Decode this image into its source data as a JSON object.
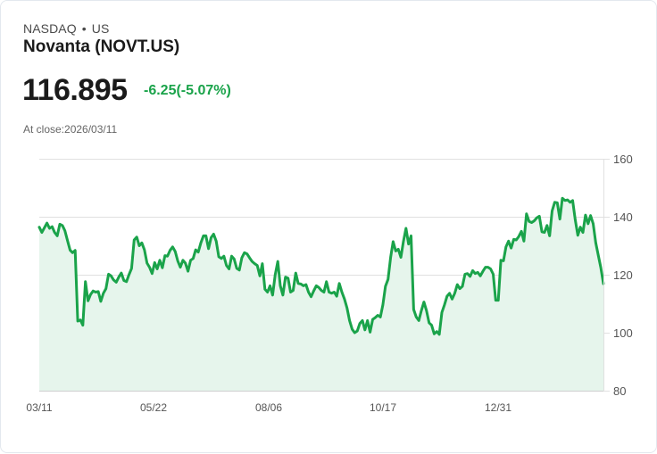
{
  "header": {
    "exchange": "NASDAQ",
    "separator": "•",
    "region": "US",
    "title": "Novanta (NOVT.US)",
    "price": "116.895",
    "change": "-6.25(-5.07%)",
    "close_label": "At close:2026/03/11"
  },
  "colors": {
    "line": "#1aa34a",
    "fill": "#e6f5ec",
    "change": "#1aa34a",
    "grid": "#e0e0e0"
  },
  "chart_data": {
    "type": "area",
    "title": "Novanta (NOVT.US)",
    "xlabel": "",
    "ylabel": "",
    "ylim": [
      80,
      160
    ],
    "yticks": [
      160,
      140,
      120,
      100,
      80
    ],
    "xtick_labels": [
      "03/11",
      "05/22",
      "08/06",
      "10/17",
      "12/31"
    ],
    "grid": true,
    "legend": null,
    "x_start_label": "03/11",
    "values": [
      136.4,
      134.6,
      136.2,
      137.8,
      136.0,
      136.6,
      134.6,
      133.4,
      137.4,
      137.0,
      135.2,
      131.8,
      128.5,
      127.6,
      128.4,
      104.0,
      104.4,
      102.6,
      117.6,
      111.0,
      113.2,
      114.4,
      114.0,
      114.2,
      110.8,
      113.6,
      115.2,
      120.2,
      119.6,
      118.2,
      117.4,
      119.2,
      120.6,
      118.0,
      117.6,
      120.0,
      122.2,
      132.0,
      133.0,
      130.0,
      131.0,
      128.6,
      124.0,
      122.6,
      120.4,
      124.2,
      122.0,
      125.0,
      122.4,
      126.6,
      126.4,
      128.4,
      129.6,
      128.0,
      124.8,
      122.6,
      125.0,
      124.0,
      121.2,
      125.0,
      125.6,
      128.6,
      127.8,
      131.0,
      133.4,
      133.4,
      129.0,
      132.8,
      134.0,
      131.6,
      126.2,
      125.6,
      126.4,
      123.2,
      122.0,
      126.4,
      125.4,
      122.2,
      121.6,
      125.8,
      127.6,
      127.2,
      125.8,
      124.6,
      123.8,
      123.2,
      119.6,
      123.8,
      115.0,
      114.0,
      116.2,
      113.0,
      120.0,
      124.6,
      116.2,
      113.0,
      119.2,
      118.8,
      114.0,
      114.6,
      120.6,
      117.0,
      116.8,
      116.2,
      116.6,
      114.0,
      112.4,
      114.4,
      116.2,
      115.6,
      114.6,
      114.0,
      117.6,
      114.0,
      113.6,
      114.0,
      112.6,
      117.0,
      114.0,
      111.6,
      108.6,
      104.2,
      101.2,
      100.0,
      100.6,
      103.2,
      104.2,
      101.0,
      104.2,
      100.2,
      104.6,
      105.2,
      106.0,
      105.4,
      109.6,
      116.0,
      118.4,
      126.0,
      131.4,
      128.2,
      128.8,
      126.0,
      131.4,
      136.0,
      130.6,
      133.4,
      108.0,
      105.4,
      104.2,
      107.6,
      110.6,
      107.6,
      103.4,
      102.6,
      99.6,
      100.4,
      99.4,
      107.0,
      109.6,
      112.6,
      113.6,
      111.6,
      113.6,
      116.6,
      115.2,
      116.0,
      120.2,
      120.4,
      119.4,
      121.4,
      120.4,
      120.8,
      119.6,
      121.2,
      122.6,
      122.6,
      122.0,
      120.2,
      111.2,
      111.2,
      125.0,
      124.8,
      129.6,
      131.6,
      129.2,
      132.2,
      132.0,
      133.2,
      135.0,
      131.6,
      141.0,
      138.4,
      138.0,
      138.6,
      139.6,
      140.2,
      134.8,
      134.6,
      137.0,
      133.4,
      142.0,
      145.0,
      144.8,
      139.2,
      146.4,
      145.6,
      145.8,
      145.0,
      145.6,
      139.0,
      133.6,
      136.4,
      134.6,
      140.6,
      137.6,
      140.4,
      137.6,
      131.0,
      126.6,
      122.4,
      116.9
    ]
  }
}
